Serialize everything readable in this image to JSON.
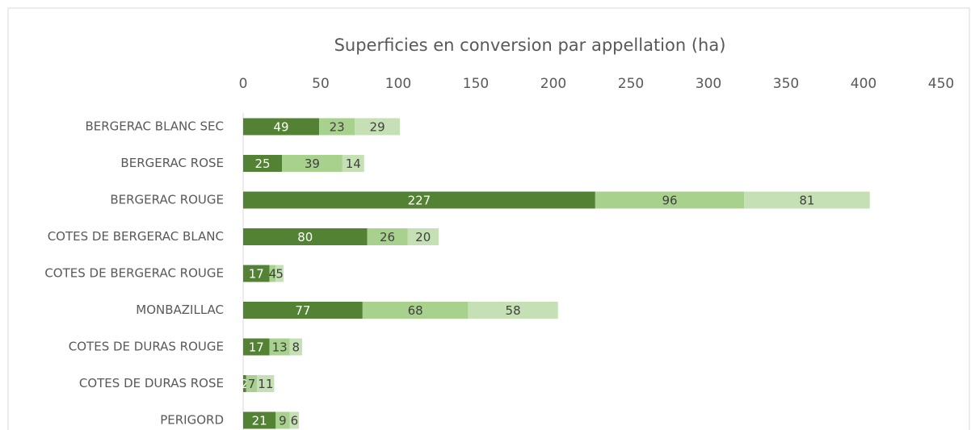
{
  "chart_data": {
    "type": "bar",
    "orientation": "horizontal",
    "stacked": true,
    "title": "Superficies en conversion par appellation (ha)",
    "categories": [
      "BERGERAC BLANC SEC",
      "BERGERAC ROSE",
      "BERGERAC ROUGE",
      "COTES DE BERGERAC BLANC",
      "COTES DE BERGERAC ROUGE",
      "MONBAZILLAC",
      "COTES DE DURAS ROUGE",
      "COTES DE DURAS ROSE",
      "PERIGORD"
    ],
    "series": [
      {
        "color": "#548235",
        "values": [
          49,
          25,
          227,
          80,
          17,
          77,
          17,
          2,
          21
        ]
      },
      {
        "color": "#a9d18e",
        "values": [
          23,
          39,
          96,
          26,
          4,
          68,
          13,
          7,
          9
        ]
      },
      {
        "color": "#c5e0b4",
        "values": [
          29,
          14,
          81,
          20,
          5,
          58,
          8,
          11,
          6
        ]
      }
    ],
    "xlim": [
      0,
      450
    ],
    "xticks": [
      0,
      50,
      100,
      150,
      200,
      250,
      300,
      350,
      400,
      450
    ]
  }
}
